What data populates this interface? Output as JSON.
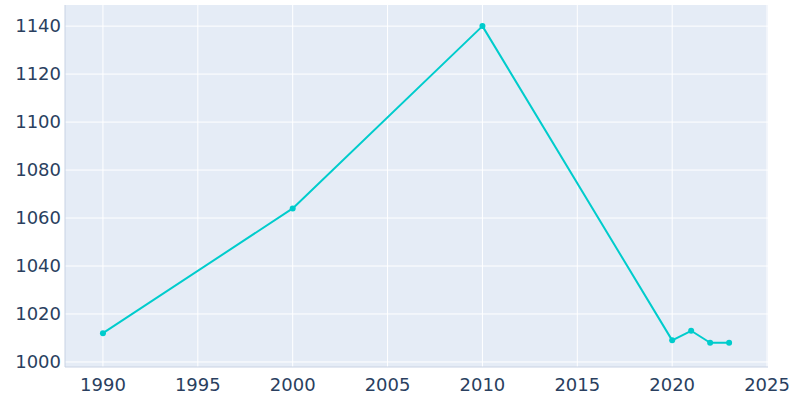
{
  "chart_data": {
    "type": "line",
    "x": [
      1990,
      2000,
      2010,
      2020,
      2021,
      2022,
      2023
    ],
    "values": [
      1012,
      1064,
      1140,
      1009,
      1013,
      1008,
      1008
    ],
    "color": "#00cccc",
    "marker": "circle",
    "xlim": [
      1988,
      2025.05
    ],
    "xticks": [
      1990,
      1995,
      2000,
      2005,
      2010,
      2015,
      2020,
      2025
    ],
    "ylim": [
      997.9,
      1148.8
    ],
    "yticks": [
      1000,
      1020,
      1040,
      1060,
      1080,
      1100,
      1120,
      1140
    ],
    "grid": true
  }
}
